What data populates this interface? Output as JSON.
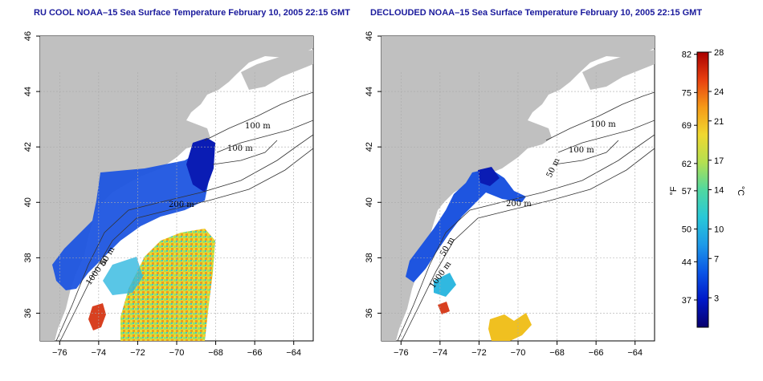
{
  "panels": [
    {
      "title": "RU COOL NOAA–15 Sea Surface Temperature February 10, 2005 22:15 GMT",
      "contour_labels": [
        "100 m",
        "100 m",
        "50 m",
        "200 m",
        "1000 m"
      ]
    },
    {
      "title": "DECLOUDED NOAA–15 Sea Surface Temperature February 10, 2005 22:15 GMT",
      "contour_labels": [
        "100 m",
        "100 m",
        "50 m",
        "200 m",
        "50 m",
        "1000 m"
      ]
    }
  ],
  "axes": {
    "x_ticks": [
      "−76",
      "−74",
      "−72",
      "−70",
      "−68",
      "−66",
      "−64"
    ],
    "y_ticks": [
      "36",
      "38",
      "40",
      "42",
      "44",
      "46"
    ]
  },
  "colorbar": {
    "unit_left": "°F",
    "unit_right": "°C",
    "f_ticks": [
      "82",
      "75",
      "69",
      "62",
      "57",
      "50",
      "44",
      "37"
    ],
    "c_ticks": [
      "28",
      "24",
      "21",
      "17",
      "14",
      "10",
      "7",
      "3"
    ]
  },
  "colors": {
    "land": "#c0c0c0",
    "title": "#1a1a9c",
    "gradient": [
      "#08006e",
      "#0018c8",
      "#0a55e6",
      "#1e9ae8",
      "#28c8d8",
      "#50d8a0",
      "#b4e050",
      "#f0d830",
      "#f59a18",
      "#e84010",
      "#aa0000"
    ]
  }
}
